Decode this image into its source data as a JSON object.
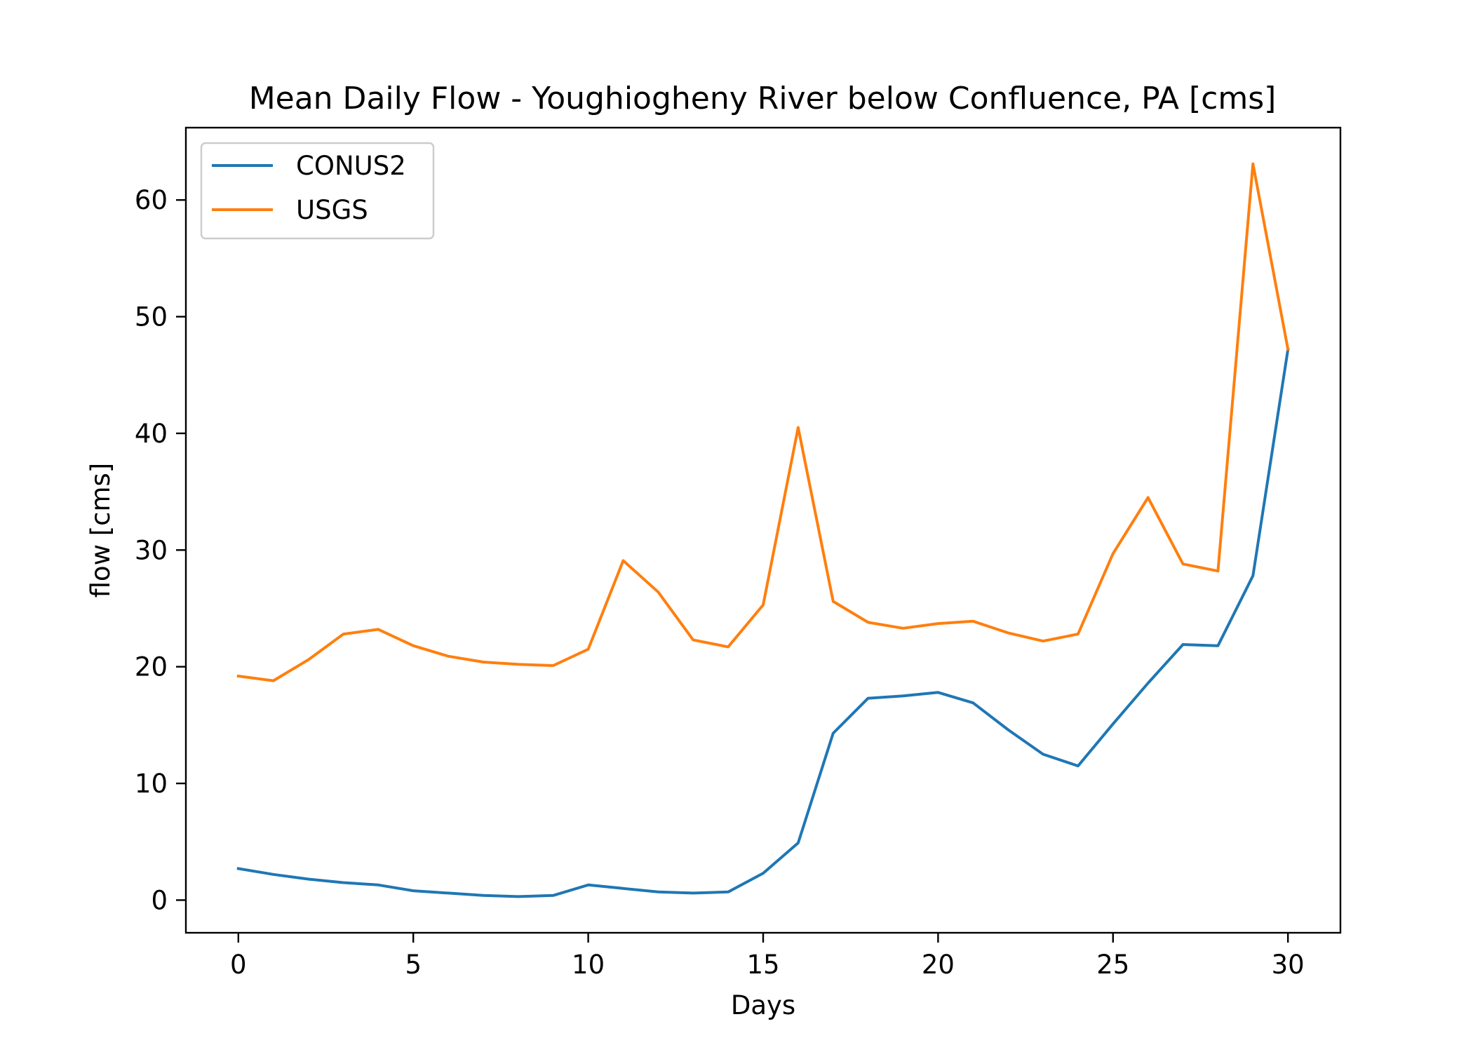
{
  "chart_data": {
    "type": "line",
    "title": "Mean Daily Flow - Youghiogheny River below Confluence, PA [cms]",
    "xlabel": "Days",
    "ylabel": "flow [cms]",
    "xlim": [
      -1.5,
      31.5
    ],
    "ylim": [
      -2.8,
      66.2
    ],
    "xticks": [
      0,
      5,
      10,
      15,
      20,
      25,
      30
    ],
    "yticks": [
      0,
      10,
      20,
      30,
      40,
      50,
      60
    ],
    "grid": false,
    "legend_position": "upper-left",
    "x": [
      0,
      1,
      2,
      3,
      4,
      5,
      6,
      7,
      8,
      9,
      10,
      11,
      12,
      13,
      14,
      15,
      16,
      17,
      18,
      19,
      20,
      21,
      22,
      23,
      24,
      25,
      26,
      27,
      28,
      29,
      30
    ],
    "series": [
      {
        "name": "CONUS2",
        "color": "#1f77b4",
        "values": [
          2.7,
          2.2,
          1.8,
          1.5,
          1.3,
          0.8,
          0.6,
          0.4,
          0.3,
          0.4,
          1.3,
          1.0,
          0.7,
          0.6,
          0.7,
          2.3,
          4.9,
          14.3,
          17.3,
          17.5,
          17.8,
          16.9,
          14.6,
          12.5,
          11.5,
          15.1,
          18.6,
          21.9,
          21.8,
          27.8,
          47.2
        ]
      },
      {
        "name": "USGS",
        "color": "#ff7f0e",
        "values": [
          19.2,
          18.8,
          20.6,
          22.8,
          23.2,
          21.8,
          20.9,
          20.4,
          20.2,
          20.1,
          21.5,
          29.1,
          26.4,
          22.3,
          21.7,
          25.3,
          40.5,
          25.6,
          23.8,
          23.3,
          23.7,
          23.9,
          22.9,
          22.2,
          22.8,
          29.7,
          34.5,
          28.8,
          28.2,
          63.1,
          47.2
        ]
      }
    ]
  }
}
